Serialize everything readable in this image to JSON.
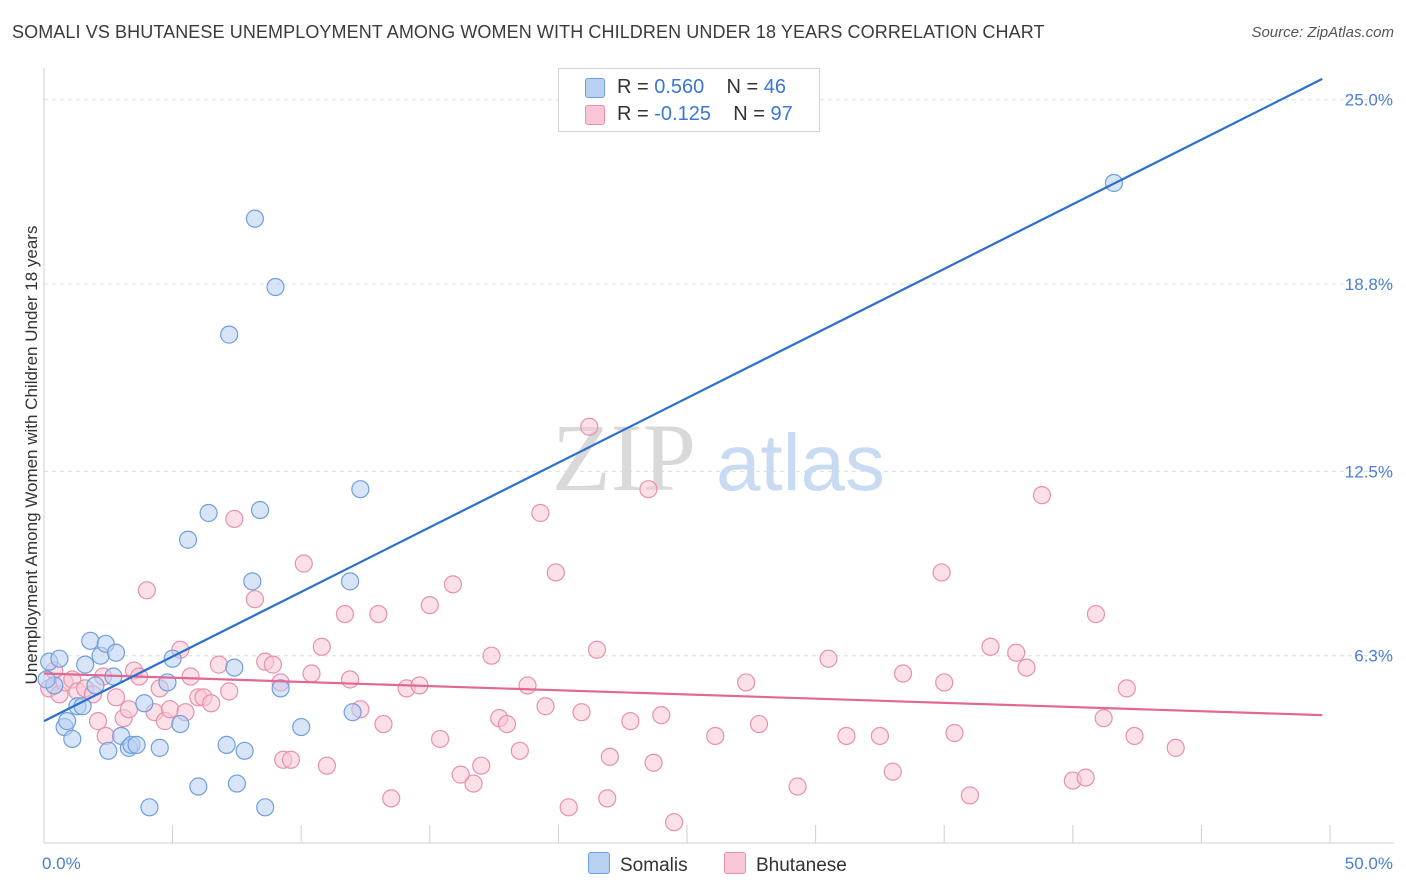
{
  "header": {
    "title": "SOMALI VS BHUTANESE UNEMPLOYMENT AMONG WOMEN WITH CHILDREN UNDER 18 YEARS CORRELATION CHART",
    "source": "Source: ZipAtlas.com"
  },
  "legend": {
    "somali": {
      "r_label": "R =",
      "r_value": "0.560",
      "n_label": "N =",
      "n_value": "46"
    },
    "bhutanese": {
      "r_label": "R =",
      "r_value": "-0.125",
      "n_label": "N =",
      "n_value": "97"
    }
  },
  "watermark": {
    "zip": "ZIP",
    "atlas": "atlas"
  },
  "colors": {
    "somali_fill": "#b8d0f2",
    "somali_stroke": "#6f9fdc",
    "somali_line": "#2c6fce",
    "bhutanese_fill": "#f8c6d6",
    "bhutanese_stroke": "#e890ad",
    "bhutanese_line": "#e06893",
    "tick_text": "#4a7fd0"
  },
  "chart_data": {
    "type": "scatter",
    "title": "SOMALI VS BHUTANESE UNEMPLOYMENT AMONG WOMEN WITH CHILDREN UNDER 18 YEARS CORRELATION CHART",
    "xlabel": "",
    "ylabel": "Unemployment Among Women with Children Under 18 years",
    "xlim": [
      0,
      50
    ],
    "ylim": [
      0,
      26
    ],
    "x_tick_labels": [
      "0.0%",
      "50.0%"
    ],
    "y_ticks": [
      6.3,
      12.5,
      18.8,
      25.0
    ],
    "y_tick_labels": [
      "6.3%",
      "12.5%",
      "18.8%",
      "25.0%"
    ],
    "grid": true,
    "legend_position": "top-center",
    "series": [
      {
        "name": "Somalis",
        "r": 0.56,
        "n": 46,
        "trend": {
          "x": [
            0,
            49.7
          ],
          "y": [
            4.1,
            25.7
          ]
        },
        "points": [
          [
            0.2,
            6.1
          ],
          [
            0.4,
            5.3
          ],
          [
            0.6,
            6.2
          ],
          [
            0.8,
            3.9
          ],
          [
            0.9,
            4.1
          ],
          [
            1.1,
            3.5
          ],
          [
            1.3,
            4.6
          ],
          [
            1.5,
            4.6
          ],
          [
            1.6,
            6.0
          ],
          [
            1.8,
            6.8
          ],
          [
            2.0,
            5.3
          ],
          [
            2.2,
            6.3
          ],
          [
            2.4,
            6.7
          ],
          [
            2.5,
            3.1
          ],
          [
            2.7,
            5.6
          ],
          [
            2.8,
            6.4
          ],
          [
            3.0,
            3.6
          ],
          [
            3.3,
            3.2
          ],
          [
            3.4,
            3.3
          ],
          [
            3.6,
            3.3
          ],
          [
            3.9,
            4.7
          ],
          [
            4.1,
            1.2
          ],
          [
            4.5,
            3.2
          ],
          [
            4.8,
            5.4
          ],
          [
            5.0,
            6.2
          ],
          [
            5.3,
            4.0
          ],
          [
            5.6,
            10.2
          ],
          [
            6.0,
            1.9
          ],
          [
            6.4,
            11.1
          ],
          [
            7.1,
            3.3
          ],
          [
            7.2,
            17.1
          ],
          [
            7.4,
            5.9
          ],
          [
            7.5,
            2.0
          ],
          [
            7.8,
            3.1
          ],
          [
            8.1,
            8.8
          ],
          [
            8.2,
            21.0
          ],
          [
            8.4,
            11.2
          ],
          [
            8.6,
            1.2
          ],
          [
            9.0,
            18.7
          ],
          [
            9.2,
            5.2
          ],
          [
            10.0,
            3.9
          ],
          [
            11.9,
            8.8
          ],
          [
            12.0,
            4.4
          ],
          [
            12.3,
            11.9
          ],
          [
            41.6,
            22.2
          ],
          [
            0.1,
            5.5
          ]
        ]
      },
      {
        "name": "Bhutanese",
        "r": -0.125,
        "n": 97,
        "trend": {
          "x": [
            0,
            49.7
          ],
          "y": [
            5.7,
            4.3
          ]
        },
        "points": [
          [
            0.2,
            5.2
          ],
          [
            0.4,
            5.8
          ],
          [
            0.6,
            5.0
          ],
          [
            0.8,
            5.4
          ],
          [
            1.1,
            5.5
          ],
          [
            1.3,
            5.1
          ],
          [
            1.6,
            5.2
          ],
          [
            1.9,
            5.0
          ],
          [
            2.1,
            4.1
          ],
          [
            2.3,
            5.6
          ],
          [
            2.4,
            3.6
          ],
          [
            2.8,
            4.9
          ],
          [
            3.1,
            4.2
          ],
          [
            3.3,
            4.5
          ],
          [
            3.5,
            5.8
          ],
          [
            3.7,
            5.6
          ],
          [
            4.0,
            8.5
          ],
          [
            4.3,
            4.4
          ],
          [
            4.5,
            5.2
          ],
          [
            4.7,
            4.1
          ],
          [
            4.9,
            4.5
          ],
          [
            5.3,
            6.5
          ],
          [
            5.5,
            4.4
          ],
          [
            5.7,
            5.6
          ],
          [
            6.0,
            4.9
          ],
          [
            6.2,
            4.9
          ],
          [
            6.5,
            4.7
          ],
          [
            6.8,
            6.0
          ],
          [
            7.2,
            5.1
          ],
          [
            7.4,
            10.9
          ],
          [
            8.2,
            8.2
          ],
          [
            8.6,
            6.1
          ],
          [
            8.9,
            6.0
          ],
          [
            9.2,
            5.4
          ],
          [
            9.3,
            2.8
          ],
          [
            9.6,
            2.8
          ],
          [
            10.1,
            9.4
          ],
          [
            10.4,
            5.7
          ],
          [
            10.8,
            6.6
          ],
          [
            11.0,
            2.6
          ],
          [
            11.7,
            7.7
          ],
          [
            11.9,
            5.5
          ],
          [
            12.3,
            4.5
          ],
          [
            13.0,
            7.7
          ],
          [
            13.2,
            4.0
          ],
          [
            13.5,
            1.5
          ],
          [
            14.1,
            5.2
          ],
          [
            14.6,
            5.3
          ],
          [
            15.0,
            8.0
          ],
          [
            15.4,
            3.5
          ],
          [
            15.9,
            8.7
          ],
          [
            16.2,
            2.3
          ],
          [
            16.7,
            2.0
          ],
          [
            17.0,
            2.6
          ],
          [
            17.4,
            6.3
          ],
          [
            17.7,
            4.2
          ],
          [
            18.0,
            4.0
          ],
          [
            18.5,
            3.1
          ],
          [
            18.8,
            5.3
          ],
          [
            19.3,
            11.1
          ],
          [
            19.5,
            4.6
          ],
          [
            19.9,
            9.1
          ],
          [
            20.4,
            1.2
          ],
          [
            20.9,
            4.4
          ],
          [
            21.2,
            14.0
          ],
          [
            21.5,
            6.5
          ],
          [
            21.9,
            1.5
          ],
          [
            22.0,
            2.9
          ],
          [
            22.8,
            4.1
          ],
          [
            23.5,
            11.9
          ],
          [
            23.7,
            2.7
          ],
          [
            24.0,
            4.3
          ],
          [
            24.5,
            0.7
          ],
          [
            26.1,
            3.6
          ],
          [
            27.3,
            5.4
          ],
          [
            27.8,
            4.0
          ],
          [
            29.3,
            1.9
          ],
          [
            30.5,
            6.2
          ],
          [
            31.2,
            3.6
          ],
          [
            32.5,
            3.6
          ],
          [
            33.0,
            2.4
          ],
          [
            33.4,
            5.7
          ],
          [
            34.9,
            9.1
          ],
          [
            35.0,
            5.4
          ],
          [
            35.4,
            3.7
          ],
          [
            36.0,
            1.6
          ],
          [
            36.8,
            6.6
          ],
          [
            37.8,
            6.4
          ],
          [
            38.2,
            5.9
          ],
          [
            38.8,
            11.7
          ],
          [
            40.0,
            2.1
          ],
          [
            40.5,
            2.2
          ],
          [
            41.2,
            4.2
          ],
          [
            40.9,
            7.7
          ],
          [
            42.1,
            5.2
          ],
          [
            42.4,
            3.6
          ],
          [
            44.0,
            3.2
          ]
        ]
      }
    ]
  },
  "bottom_legend": {
    "somalis": "Somalis",
    "bhutanese": "Bhutanese"
  }
}
